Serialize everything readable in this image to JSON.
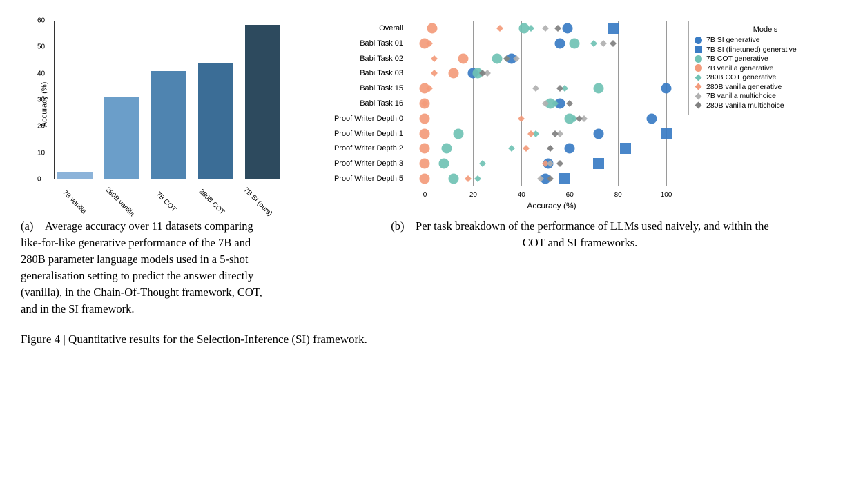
{
  "bar_chart": {
    "type": "bar",
    "ylabel": "Accuracy (%)",
    "ylim": [
      0,
      60
    ],
    "ytick_step": 10,
    "background_color": "#ffffff",
    "label_fontsize": 11,
    "tick_fontsize": 10,
    "categories": [
      "7B vanilla",
      "280B vanilla",
      "7B COT",
      "280B COT",
      "7B SI (ours)"
    ],
    "values": [
      2.5,
      31,
      41,
      44,
      58.5
    ],
    "bar_colors": [
      "#8cb3d9",
      "#6b9ec9",
      "#4f84b0",
      "#3b6d96",
      "#2d4a5e"
    ]
  },
  "scatter_chart": {
    "type": "scatter",
    "xlabel": "Accuracy (%)",
    "xlim": [
      -5,
      110
    ],
    "xtick_positions": [
      0,
      20,
      40,
      60,
      80,
      100
    ],
    "gridline_positions": [
      0,
      20,
      40,
      60,
      80,
      100
    ],
    "grid_color": "#9a9a9a",
    "label_fontsize": 12,
    "tick_fontsize": 10,
    "rowlabel_fontsize": 11,
    "legend_title": "Models",
    "rows": [
      "Overall",
      "Babi Task 01",
      "Babi Task 02",
      "Babi Task 03",
      "Babi Task 15",
      "Babi Task 16",
      "Proof Writer Depth 0",
      "Proof Writer Depth 1",
      "Proof Writer Depth 2",
      "Proof Writer Depth 3",
      "Proof Writer Depth 5"
    ],
    "series": [
      {
        "name": "7B SI generative",
        "marker": "circle",
        "size": 15,
        "color": "#3a7cc4",
        "values": [
          59,
          56,
          36,
          20,
          100,
          56,
          94,
          72,
          60,
          51,
          50
        ]
      },
      {
        "name": "7B SI (finetuned) generative",
        "marker": "square",
        "size": 16,
        "color": "#3a7cc4",
        "values": [
          78,
          null,
          null,
          null,
          null,
          null,
          null,
          100,
          83,
          72,
          58
        ]
      },
      {
        "name": "7B COT generative",
        "marker": "circle",
        "size": 15,
        "color": "#70c2b4",
        "values": [
          41,
          62,
          30,
          22,
          72,
          52,
          60,
          14,
          9,
          8,
          12
        ]
      },
      {
        "name": "7B vanilla generative",
        "marker": "circle",
        "size": 15,
        "color": "#f39b7b",
        "values": [
          3,
          0,
          16,
          12,
          0,
          0,
          0,
          0,
          0,
          0,
          0
        ]
      },
      {
        "name": "280B COT generative",
        "marker": "diamond",
        "size": 7,
        "color": "#70c2b4",
        "values": [
          44,
          70,
          34,
          23,
          58,
          54,
          62,
          46,
          36,
          24,
          22
        ]
      },
      {
        "name": "280B vanilla generative",
        "marker": "diamond",
        "size": 7,
        "color": "#f39b7b",
        "values": [
          31,
          2,
          4,
          4,
          2,
          0,
          40,
          44,
          42,
          50,
          18
        ]
      },
      {
        "name": "7B vanilla multichoice",
        "marker": "diamond",
        "size": 7,
        "color": "#b0b0b0",
        "values": [
          50,
          74,
          38,
          26,
          46,
          50,
          66,
          56,
          52,
          52,
          48
        ]
      },
      {
        "name": "280B vanilla multichoice",
        "marker": "diamond",
        "size": 7,
        "color": "#808080",
        "values": [
          55,
          78,
          34,
          24,
          56,
          60,
          64,
          54,
          52,
          56,
          52
        ]
      }
    ]
  },
  "captions": {
    "a": "(a) Average accuracy over 11 datasets comparing like-for-like generative performance of the 7B and 280B parameter language models used in a 5-shot generalisation setting to predict the answer directly (vanilla), in the Chain-Of-Thought framework, COT, and in the SI framework.",
    "b": "(b) Per task breakdown of the performance of LLMs used naively, and within the COT and SI frameworks.",
    "main": "Figure 4 | Quantitative results for the Selection-Inference (SI) framework."
  }
}
